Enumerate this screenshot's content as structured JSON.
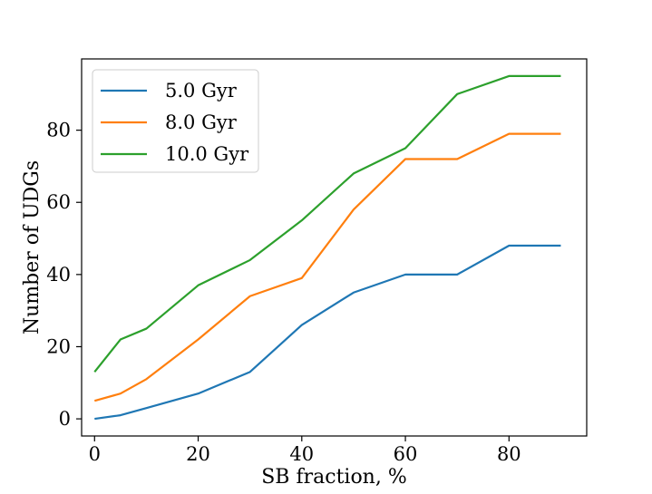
{
  "chart_data": {
    "type": "line",
    "title": "",
    "xlabel": "SB fraction, %",
    "ylabel": "Number of UDGs",
    "x": [
      0,
      5,
      10,
      20,
      30,
      40,
      50,
      60,
      70,
      80,
      90
    ],
    "xlim": [
      -2.5,
      95
    ],
    "ylim": [
      -4.75,
      99.75
    ],
    "xticks": [
      0,
      20,
      40,
      60,
      80
    ],
    "yticks": [
      0,
      20,
      40,
      60,
      80
    ],
    "xtick_labels": [
      "0",
      "20",
      "40",
      "60",
      "80"
    ],
    "ytick_labels": [
      "0",
      "20",
      "40",
      "60",
      "80"
    ],
    "grid": false,
    "legend_position": "upper-left",
    "series": [
      {
        "name": "5.0 Gyr",
        "color": "#1f77b4",
        "values": [
          0,
          1,
          3,
          7,
          13,
          26,
          35,
          40,
          40,
          48,
          48
        ]
      },
      {
        "name": "8.0 Gyr",
        "color": "#ff7f0e",
        "values": [
          5,
          7,
          11,
          22,
          34,
          39,
          58,
          72,
          72,
          79,
          79
        ]
      },
      {
        "name": "10.0 Gyr",
        "color": "#2ca02c",
        "values": [
          13,
          22,
          25,
          37,
          44,
          55,
          68,
          75,
          90,
          95,
          95
        ]
      }
    ]
  }
}
